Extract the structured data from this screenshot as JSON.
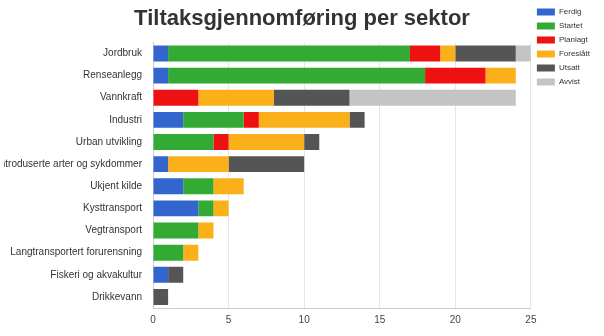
{
  "chart_data": {
    "type": "bar",
    "title": "Tiltaksgjennomføring per sektor",
    "orientation": "horizontal",
    "stacked": true,
    "grid": true,
    "legend": "top-right",
    "categories": [
      "Jordbruk",
      "Renseanlegg",
      "Vannkraft",
      "Industri",
      "Urban utvikling",
      "Introduserte arter og sykdommer",
      "Ukjent kilde",
      "Kysttransport",
      "Vegtransport",
      "Langtransportert forurensning",
      "Fiskeri og akvakultur",
      "Drikkevann"
    ],
    "series": [
      {
        "name": "Ferdig",
        "color": "#3366cc",
        "values": [
          1,
          1,
          0,
          2,
          0,
          1,
          2,
          3,
          0,
          0,
          1,
          0
        ]
      },
      {
        "name": "Startet",
        "color": "#33aa33",
        "values": [
          16,
          17,
          0,
          4,
          4,
          0,
          2,
          1,
          3,
          2,
          0,
          0
        ]
      },
      {
        "name": "Planlagt",
        "color": "#ee1111",
        "values": [
          2,
          4,
          3,
          1,
          1,
          0,
          0,
          0,
          0,
          0,
          0,
          0
        ]
      },
      {
        "name": "Foreslått",
        "color": "#fbb01a",
        "values": [
          1,
          2,
          5,
          6,
          5,
          4,
          2,
          1,
          1,
          1,
          0,
          0
        ]
      },
      {
        "name": "Utsatt",
        "color": "#555555",
        "values": [
          4,
          0,
          5,
          1,
          1,
          5,
          0,
          0,
          0,
          0,
          1,
          1
        ]
      },
      {
        "name": "Avvist",
        "color": "#c4c4c4",
        "values": [
          1,
          0,
          11,
          0,
          0,
          0,
          0,
          0,
          0,
          0,
          0,
          0
        ]
      }
    ],
    "xlim": [
      0,
      25
    ],
    "xticks": [
      0,
      5,
      10,
      15,
      20,
      25
    ]
  }
}
